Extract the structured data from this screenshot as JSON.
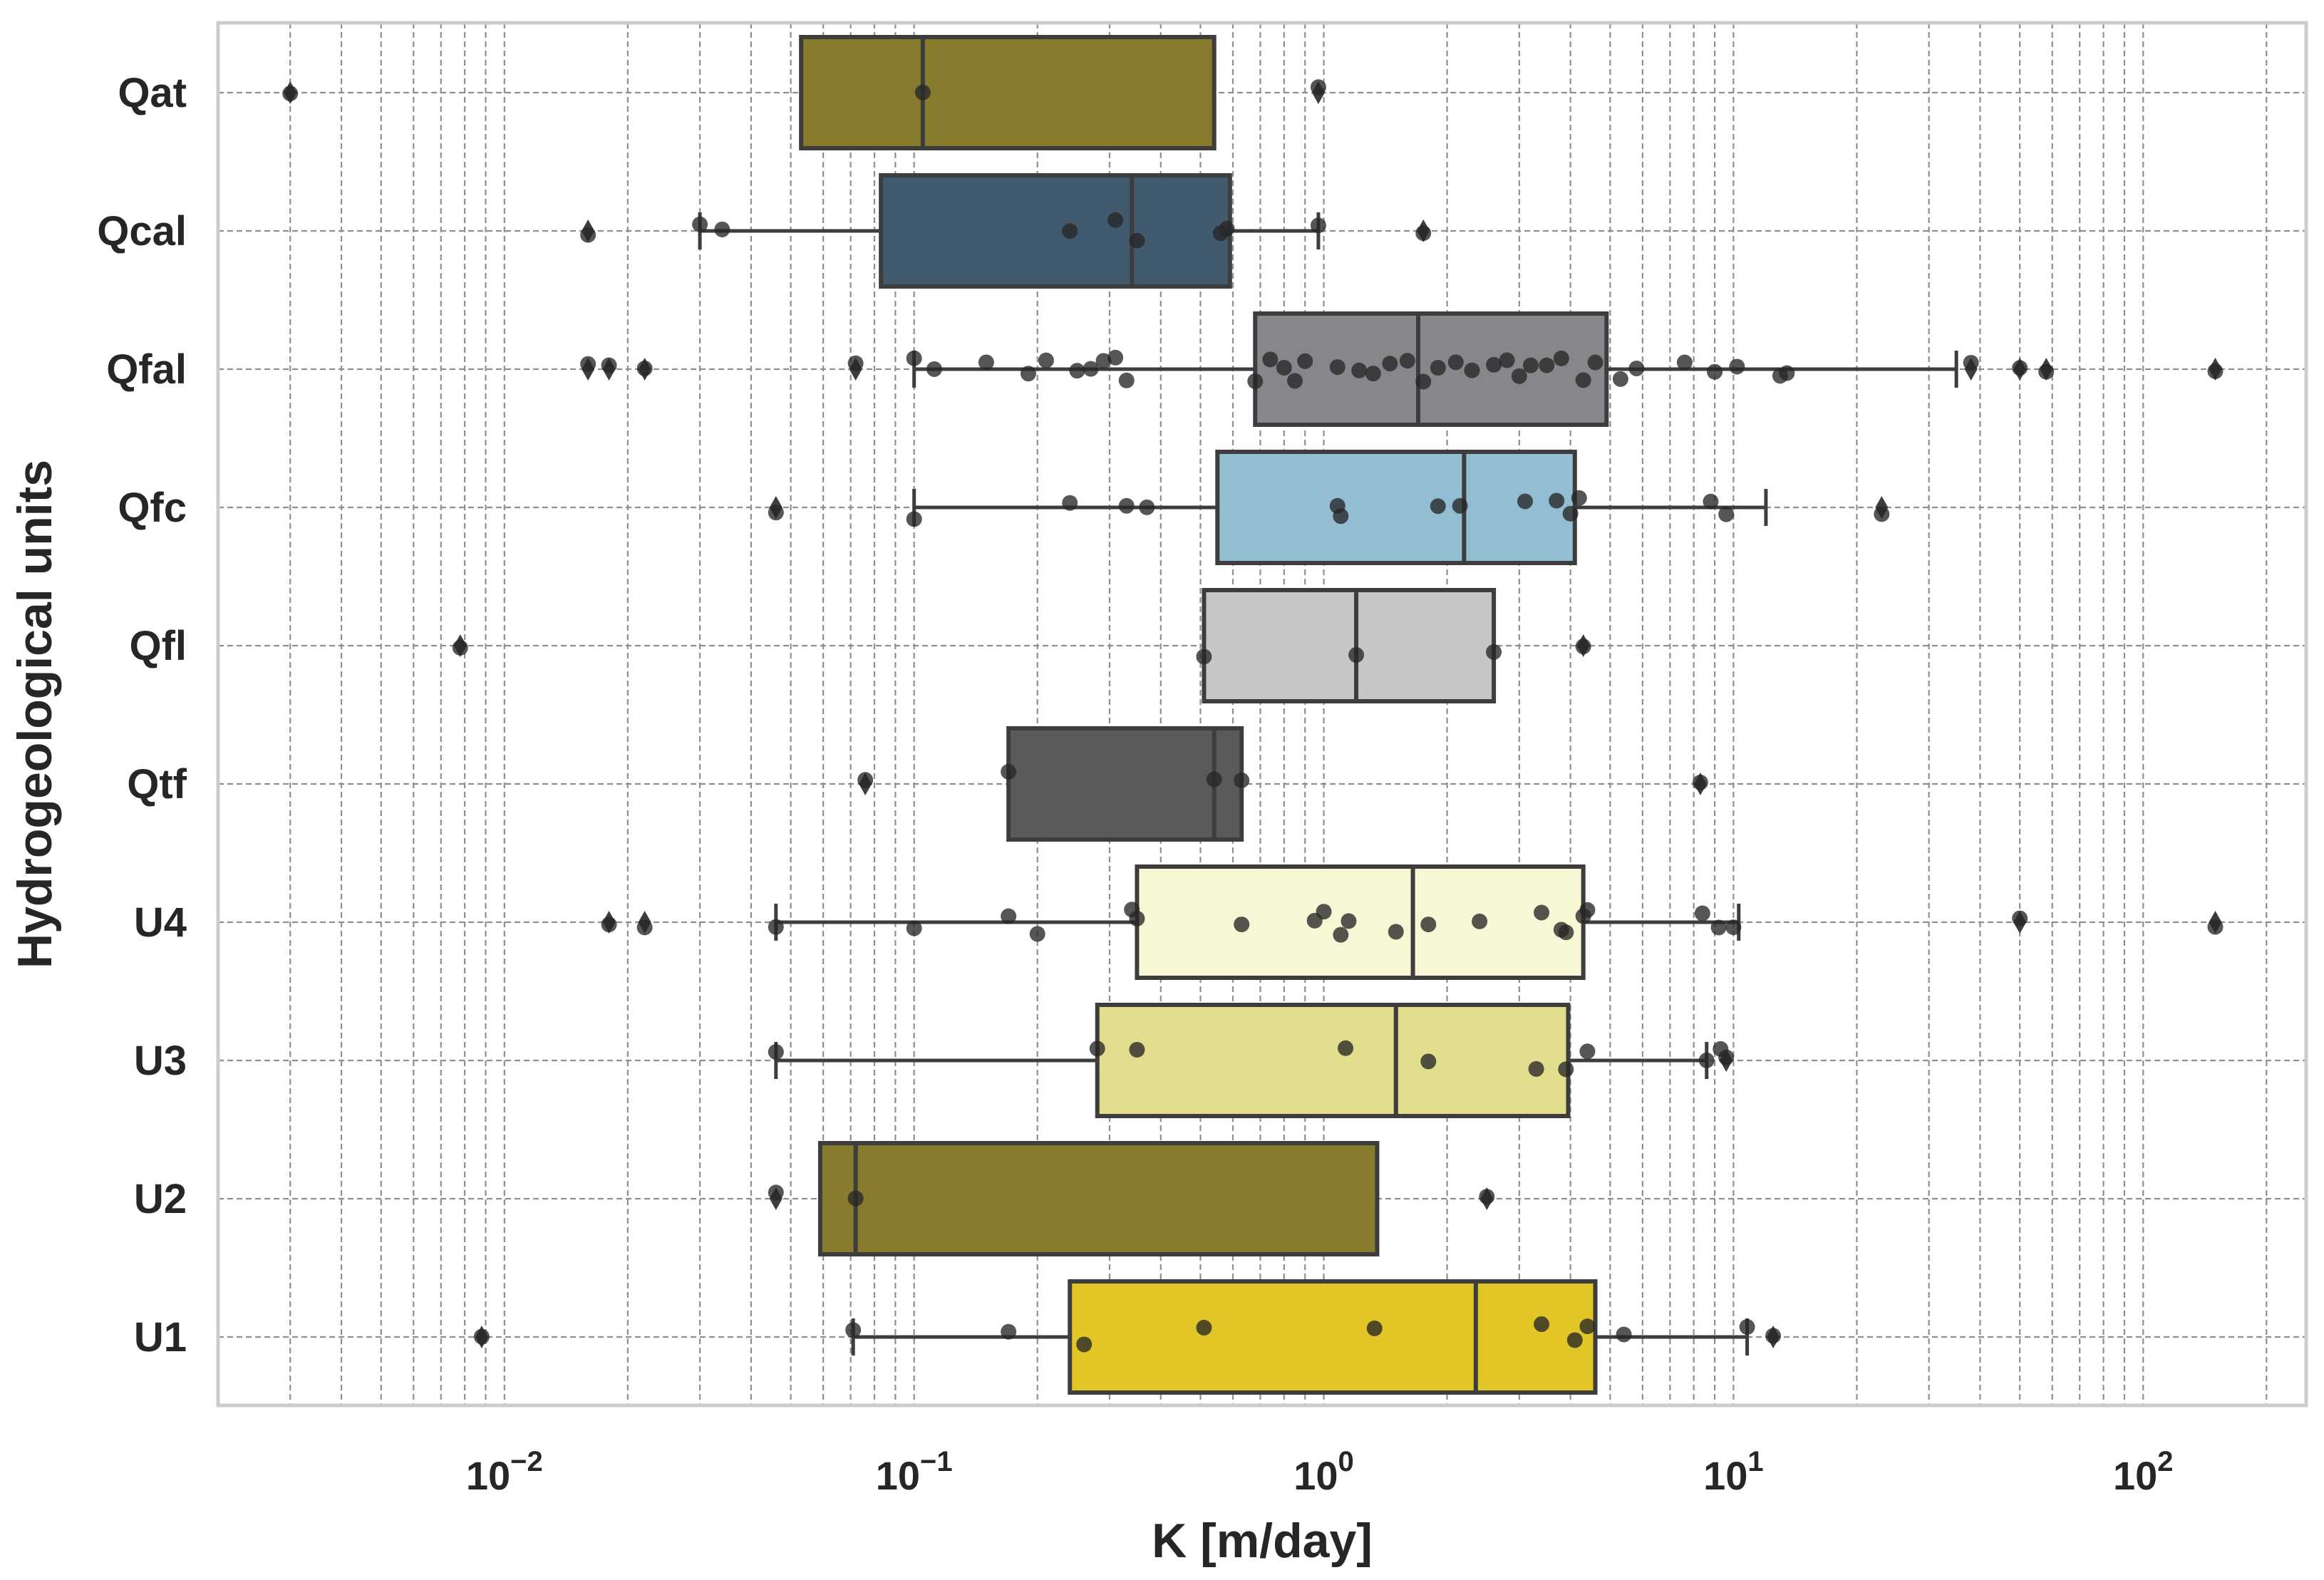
{
  "chart_data": {
    "type": "boxplot",
    "orientation": "horizontal",
    "xlabel": "K [m/day]",
    "ylabel": "Hydrogeological units",
    "xscale": "log",
    "xlim": [
      0.002,
      250
    ],
    "xticks": [
      {
        "base": "10",
        "exp": "−2"
      },
      {
        "base": "10",
        "exp": "−1"
      },
      {
        "base": "10",
        "exp": "0"
      },
      {
        "base": "10",
        "exp": "1"
      },
      {
        "base": "10",
        "exp": "2"
      }
    ],
    "xtick_values": [
      0.01,
      0.1,
      1,
      10,
      100
    ],
    "grid": true,
    "categories": [
      "Qat",
      "Qcal",
      "Qfal",
      "Qfc",
      "Qfl",
      "Qtf",
      "U4",
      "U3",
      "U2",
      "U1"
    ],
    "boxes": [
      {
        "name": "Qat",
        "color": "#877b2d",
        "q1": 0.053,
        "median": 0.105,
        "q3": 0.54,
        "whisker_low": null,
        "whisker_high": null,
        "outliers": [
          0.003,
          0.97
        ],
        "points": [
          0.105
        ]
      },
      {
        "name": "Qcal",
        "color": "#415a6e",
        "q1": 0.083,
        "median": 0.34,
        "q3": 0.59,
        "whisker_low": 0.03,
        "whisker_high": 0.97,
        "outliers": [
          0.016,
          1.75
        ],
        "points": [
          0.03,
          0.034,
          0.24,
          0.31,
          0.35,
          0.56,
          0.58,
          0.97
        ]
      },
      {
        "name": "Qfal",
        "color": "#87878b",
        "q1": 0.68,
        "median": 1.7,
        "q3": 4.9,
        "whisker_low": 0.1,
        "whisker_high": 35,
        "outliers": [
          0.016,
          0.018,
          0.022,
          0.072,
          38,
          50,
          58,
          150
        ],
        "points": [
          0.1,
          0.112,
          0.15,
          0.19,
          0.21,
          0.25,
          0.27,
          0.29,
          0.31,
          0.33,
          0.68,
          0.74,
          0.8,
          0.85,
          0.9,
          1.08,
          1.22,
          1.32,
          1.45,
          1.6,
          1.75,
          1.9,
          2.1,
          2.3,
          2.6,
          2.8,
          3.0,
          3.2,
          3.5,
          3.8,
          4.3,
          4.6,
          5.3,
          5.8,
          7.6,
          9.0,
          10.2,
          13,
          13.5
        ]
      },
      {
        "name": "Qfc",
        "color": "#93bdd3",
        "q1": 0.55,
        "median": 2.2,
        "q3": 4.1,
        "whisker_low": 0.1,
        "whisker_high": 12,
        "outliers": [
          0.046,
          23
        ],
        "points": [
          0.1,
          0.24,
          0.33,
          0.37,
          1.08,
          1.1,
          1.9,
          2.15,
          3.1,
          3.7,
          4.0,
          4.2,
          8.8,
          9.6
        ]
      },
      {
        "name": "Qfl",
        "color": "#c6c6c8",
        "q1": 0.51,
        "median": 1.2,
        "q3": 2.6,
        "whisker_low": null,
        "whisker_high": null,
        "outliers": [
          0.0078,
          4.3
        ],
        "points": [
          0.51,
          1.2,
          2.6
        ]
      },
      {
        "name": "Qtf",
        "color": "#5a5a5c",
        "q1": 0.17,
        "median": 0.54,
        "q3": 0.63,
        "whisker_low": null,
        "whisker_high": null,
        "outliers": [
          0.076,
          8.3
        ],
        "points": [
          0.17,
          0.54,
          0.63
        ]
      },
      {
        "name": "U4",
        "color": "#f7f7d6",
        "q1": 0.35,
        "median": 1.65,
        "q3": 4.3,
        "whisker_low": 0.046,
        "whisker_high": 10.3,
        "outliers": [
          0.018,
          0.022,
          50,
          150
        ],
        "points": [
          0.046,
          0.1,
          0.17,
          0.2,
          0.34,
          0.35,
          0.63,
          0.95,
          1.0,
          1.1,
          1.15,
          1.5,
          1.8,
          2.4,
          3.4,
          3.8,
          3.9,
          4.3,
          4.4,
          8.4,
          9.2,
          10.0
        ]
      },
      {
        "name": "U3",
        "color": "#e3de8e",
        "q1": 0.28,
        "median": 1.5,
        "q3": 3.95,
        "whisker_low": 0.046,
        "whisker_high": 8.6,
        "outliers": [
          9.6
        ],
        "points": [
          0.046,
          0.28,
          0.35,
          1.13,
          1.8,
          3.3,
          3.9,
          4.4,
          8.6,
          9.3
        ]
      },
      {
        "name": "U2",
        "color": "#877b2d",
        "q1": 0.059,
        "median": 0.072,
        "q3": 1.35,
        "whisker_low": null,
        "whisker_high": null,
        "outliers": [
          0.046,
          2.5
        ],
        "points": [
          0.072
        ]
      },
      {
        "name": "U1",
        "color": "#e2c527",
        "q1": 0.24,
        "median": 2.35,
        "q3": 4.6,
        "whisker_low": 0.071,
        "whisker_high": 10.8,
        "outliers": [
          0.0088,
          12.5
        ],
        "points": [
          0.071,
          0.17,
          0.26,
          0.51,
          1.33,
          3.4,
          4.1,
          4.4,
          5.4,
          10.8
        ]
      }
    ]
  }
}
